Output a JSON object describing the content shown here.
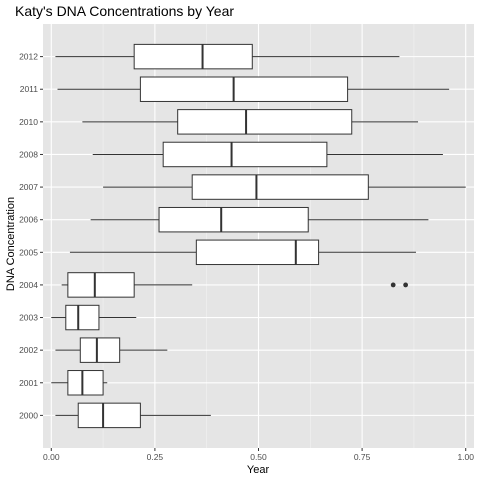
{
  "chart_data": {
    "type": "boxplot",
    "orientation": "horizontal",
    "title": "Katy's DNA Concentrations by Year",
    "xlabel": "Year",
    "ylabel": "DNA Concentration",
    "xlim": [
      -0.02,
      1.02
    ],
    "x_ticks": [
      0.0,
      0.25,
      0.5,
      0.75,
      1.0
    ],
    "x_tick_labels": [
      "0.00",
      "0.25",
      "0.50",
      "0.75",
      "1.00"
    ],
    "grid": true,
    "legend": "none",
    "colors": {
      "panel_background": "#e5e5e5",
      "major_grid": "#ffffff",
      "minor_grid": "#f2f2f2",
      "box_fill": "#ffffff",
      "box_stroke": "#333333",
      "text": "#000000",
      "tick_text": "#4d4d4d"
    },
    "categories": [
      "2000",
      "2001",
      "2002",
      "2003",
      "2004",
      "2005",
      "2006",
      "2007",
      "2008",
      "2010",
      "2011",
      "2012"
    ],
    "boxes": [
      {
        "category": "2000",
        "whisker_low": 0.01,
        "q1": 0.065,
        "median": 0.125,
        "q3": 0.215,
        "whisker_high": 0.385,
        "outliers": []
      },
      {
        "category": "2001",
        "whisker_low": 0.0,
        "q1": 0.04,
        "median": 0.075,
        "q3": 0.125,
        "whisker_high": 0.135,
        "outliers": []
      },
      {
        "category": "2002",
        "whisker_low": 0.01,
        "q1": 0.07,
        "median": 0.11,
        "q3": 0.165,
        "whisker_high": 0.28,
        "outliers": []
      },
      {
        "category": "2003",
        "whisker_low": 0.0,
        "q1": 0.035,
        "median": 0.065,
        "q3": 0.115,
        "whisker_high": 0.205,
        "outliers": []
      },
      {
        "category": "2004",
        "whisker_low": 0.025,
        "q1": 0.04,
        "median": 0.105,
        "q3": 0.2,
        "whisker_high": 0.34,
        "outliers": [
          0.825,
          0.855
        ]
      },
      {
        "category": "2005",
        "whisker_low": 0.045,
        "q1": 0.35,
        "median": 0.59,
        "q3": 0.645,
        "whisker_high": 0.88,
        "outliers": []
      },
      {
        "category": "2006",
        "whisker_low": 0.095,
        "q1": 0.26,
        "median": 0.41,
        "q3": 0.62,
        "whisker_high": 0.91,
        "outliers": []
      },
      {
        "category": "2007",
        "whisker_low": 0.125,
        "q1": 0.34,
        "median": 0.495,
        "q3": 0.765,
        "whisker_high": 1.0,
        "outliers": []
      },
      {
        "category": "2008",
        "whisker_low": 0.1,
        "q1": 0.27,
        "median": 0.435,
        "q3": 0.665,
        "whisker_high": 0.945,
        "outliers": []
      },
      {
        "category": "2010",
        "whisker_low": 0.075,
        "q1": 0.305,
        "median": 0.47,
        "q3": 0.725,
        "whisker_high": 0.885,
        "outliers": []
      },
      {
        "category": "2011",
        "whisker_low": 0.015,
        "q1": 0.215,
        "median": 0.44,
        "q3": 0.715,
        "whisker_high": 0.96,
        "outliers": []
      },
      {
        "category": "2012",
        "whisker_low": 0.01,
        "q1": 0.2,
        "median": 0.365,
        "q3": 0.485,
        "whisker_high": 0.84,
        "outliers": []
      }
    ]
  }
}
